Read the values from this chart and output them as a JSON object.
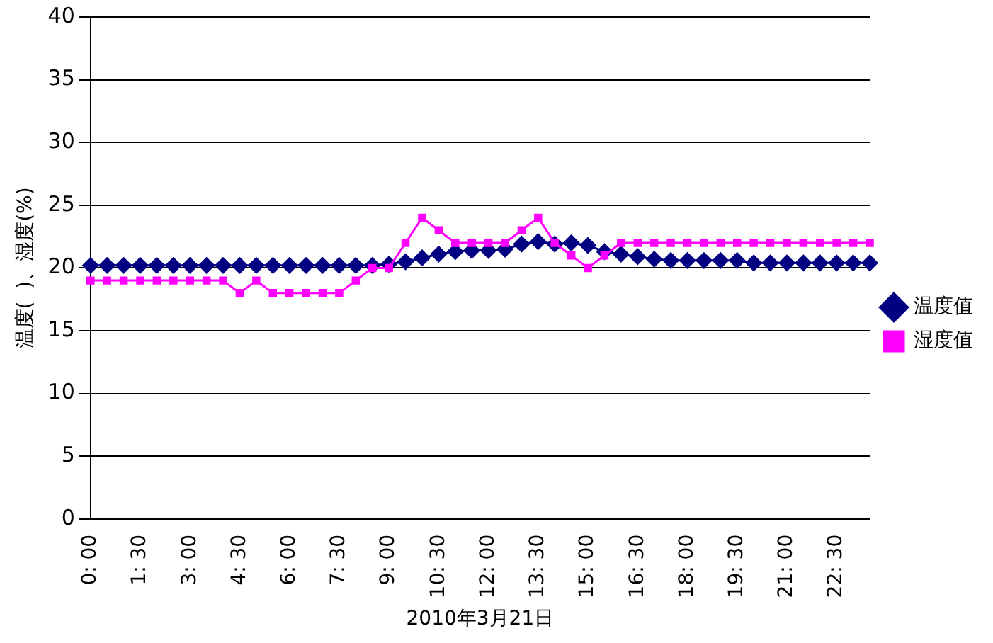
{
  "chart_data": {
    "type": "line",
    "xlabel": "2010年3月21日",
    "ylabel": "温度(  )、湿度(%)",
    "categories": [
      "0: 00",
      null,
      null,
      "1: 30",
      null,
      null,
      "3: 00",
      null,
      null,
      "4: 30",
      null,
      null,
      "6: 00",
      null,
      null,
      "7: 30",
      null,
      null,
      "9: 00",
      null,
      null,
      "10: 30",
      null,
      null,
      "12: 00",
      null,
      null,
      "13: 30",
      null,
      null,
      "15: 00",
      null,
      null,
      "16: 30",
      null,
      null,
      "18: 00",
      null,
      null,
      "19: 30",
      null,
      null,
      "21: 00",
      null,
      null,
      "22: 30",
      null,
      null
    ],
    "series": [
      {
        "name": "温度值",
        "color": "#000080",
        "marker": "diamond",
        "values": [
          20.2,
          20.2,
          20.2,
          20.2,
          20.2,
          20.2,
          20.2,
          20.2,
          20.2,
          20.2,
          20.2,
          20.2,
          20.2,
          20.2,
          20.2,
          20.2,
          20.2,
          20.2,
          20.3,
          20.5,
          20.8,
          21.1,
          21.3,
          21.4,
          21.4,
          21.5,
          21.9,
          22.1,
          21.9,
          22.0,
          21.8,
          21.3,
          21.1,
          20.9,
          20.7,
          20.6,
          20.6,
          20.6,
          20.6,
          20.6,
          20.4,
          20.4,
          20.4,
          20.4,
          20.4,
          20.4,
          20.4,
          20.4
        ]
      },
      {
        "name": "湿度值",
        "color": "#ff00ff",
        "marker": "square",
        "values": [
          19,
          19,
          19,
          19,
          19,
          19,
          19,
          19,
          19,
          18,
          19,
          18,
          18,
          18,
          18,
          18,
          19,
          20,
          20,
          22,
          24,
          23,
          22,
          22,
          22,
          22,
          23,
          24,
          22,
          21,
          20,
          21,
          22,
          22,
          22,
          22,
          22,
          22,
          22,
          22,
          22,
          22,
          22,
          22,
          22,
          22,
          22,
          22
        ]
      }
    ],
    "ylim": [
      0,
      40
    ],
    "yticks": [
      0,
      5,
      10,
      15,
      20,
      25,
      30,
      35,
      40
    ],
    "grid": "y",
    "legend": "right",
    "line_style": "solid"
  }
}
